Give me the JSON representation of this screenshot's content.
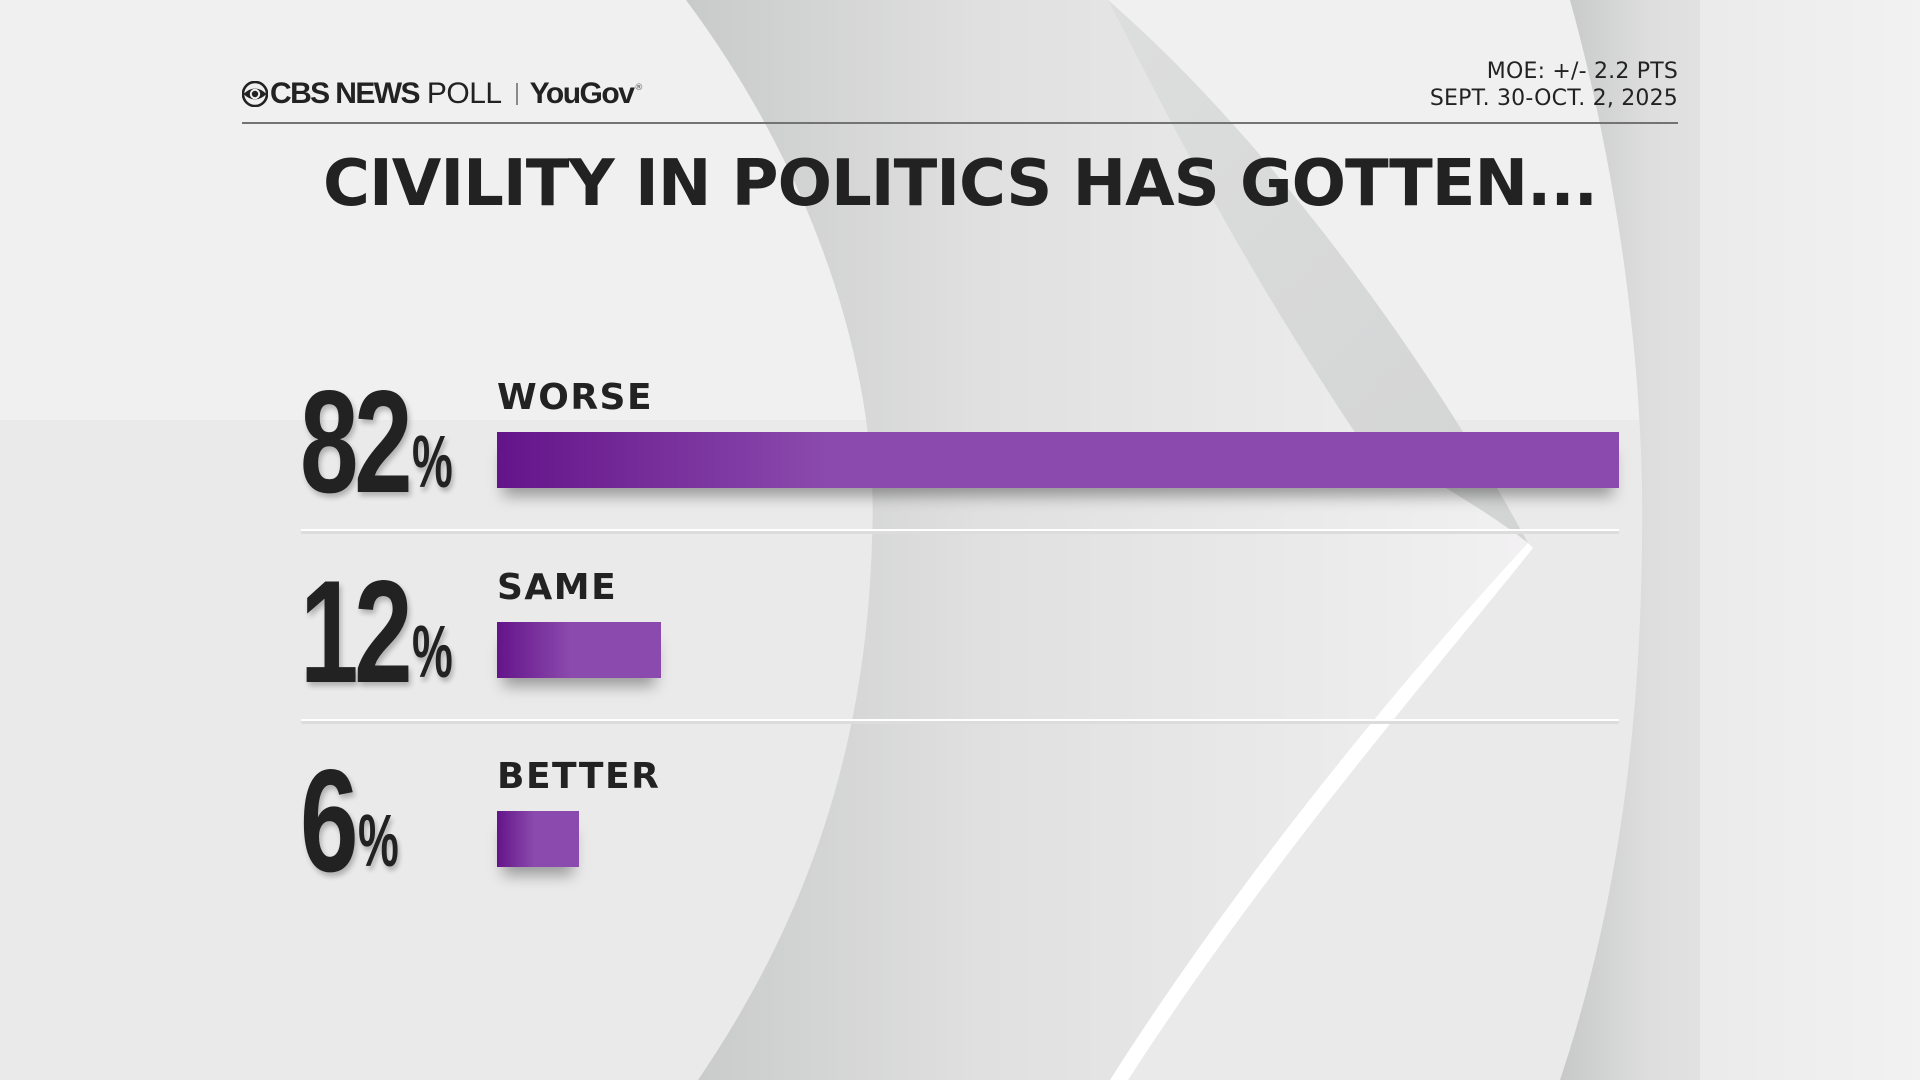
{
  "header": {
    "logo": {
      "brand": "CBS NEWS",
      "poll": "POLL",
      "partner": "YouGov",
      "registered": "®"
    },
    "moe": "MOE: +/- 2.2 PTS",
    "dates": "SEPT. 30-OCT. 2, 2025"
  },
  "colors": {
    "bar_start": "#64148a",
    "bar_end": "#8b4aad",
    "text": "#222222"
  },
  "chart_data": {
    "type": "bar",
    "orientation": "horizontal",
    "title": "CIVILITY IN POLITICS HAS GOTTEN...",
    "categories": [
      "WORSE",
      "SAME",
      "BETTER"
    ],
    "values": [
      82,
      12,
      6
    ],
    "value_labels": [
      "82",
      "12",
      "6"
    ],
    "unit": "%",
    "xlim": [
      0,
      82
    ],
    "grid": false,
    "legend": "none"
  }
}
